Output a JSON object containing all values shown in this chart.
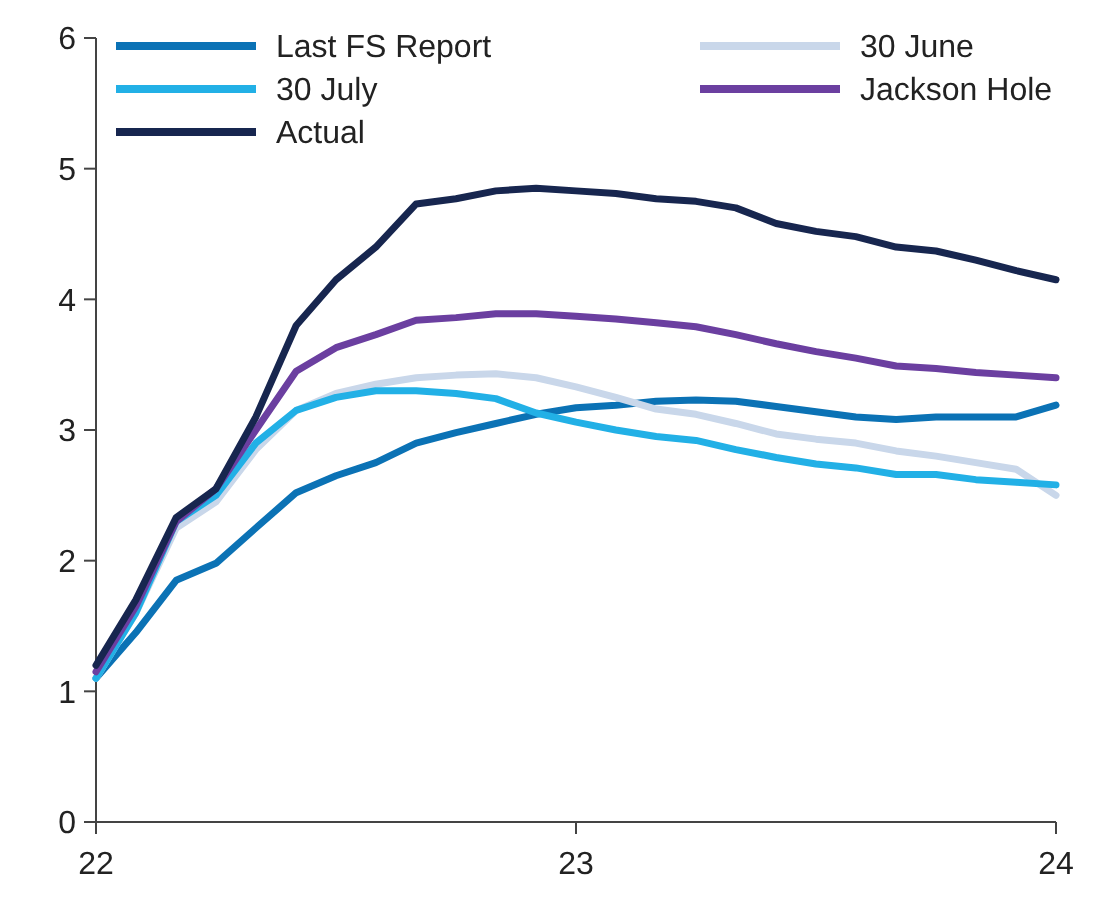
{
  "chart_data": {
    "type": "line",
    "x": [
      22,
      22.083,
      22.167,
      22.25,
      22.333,
      22.417,
      22.5,
      22.583,
      22.667,
      22.75,
      22.833,
      22.917,
      23,
      23.083,
      23.167,
      23.25,
      23.333,
      23.417,
      23.5,
      23.583,
      23.667,
      23.75,
      23.833,
      23.917,
      24
    ],
    "xlim": [
      22,
      24
    ],
    "xticks": [
      22,
      23,
      24
    ],
    "ylim": [
      0,
      6
    ],
    "yticks": [
      0,
      1,
      2,
      3,
      4,
      5,
      6
    ],
    "grid": false,
    "legend": "top",
    "line_style": "solid",
    "marker": "none",
    "series": [
      {
        "name": "Last FS Report",
        "color": "#0b72b5",
        "values": [
          1.1,
          1.45,
          1.85,
          1.98,
          2.25,
          2.52,
          2.65,
          2.75,
          2.9,
          2.98,
          3.05,
          3.12,
          3.17,
          3.19,
          3.22,
          3.23,
          3.22,
          3.18,
          3.14,
          3.1,
          3.08,
          3.1,
          3.1,
          3.1,
          3.19
        ]
      },
      {
        "name": "30 June",
        "color": "#c9d7ea",
        "values": [
          1.1,
          1.6,
          2.25,
          2.45,
          2.85,
          3.15,
          3.28,
          3.35,
          3.4,
          3.42,
          3.43,
          3.4,
          3.33,
          3.25,
          3.16,
          3.12,
          3.05,
          2.97,
          2.93,
          2.9,
          2.84,
          2.8,
          2.75,
          2.7,
          2.5
        ]
      },
      {
        "name": "30 July",
        "color": "#22b0e6",
        "values": [
          1.1,
          1.6,
          2.3,
          2.5,
          2.9,
          3.15,
          3.25,
          3.3,
          3.3,
          3.28,
          3.24,
          3.13,
          3.06,
          3.0,
          2.95,
          2.92,
          2.85,
          2.79,
          2.74,
          2.71,
          2.66,
          2.66,
          2.62,
          2.6,
          2.58
        ]
      },
      {
        "name": "Jackson Hole",
        "color": "#6b3fa0",
        "values": [
          1.15,
          1.65,
          2.3,
          2.55,
          3.0,
          3.45,
          3.63,
          3.73,
          3.84,
          3.86,
          3.89,
          3.89,
          3.87,
          3.85,
          3.82,
          3.79,
          3.73,
          3.66,
          3.6,
          3.55,
          3.49,
          3.47,
          3.44,
          3.42,
          3.4
        ]
      },
      {
        "name": "Actual",
        "color": "#17264f",
        "values": [
          1.2,
          1.7,
          2.33,
          2.55,
          3.1,
          3.8,
          4.15,
          4.4,
          4.73,
          4.77,
          4.83,
          4.85,
          4.83,
          4.81,
          4.77,
          4.75,
          4.7,
          4.58,
          4.52,
          4.48,
          4.4,
          4.37,
          4.3,
          4.22,
          4.15
        ]
      }
    ]
  }
}
